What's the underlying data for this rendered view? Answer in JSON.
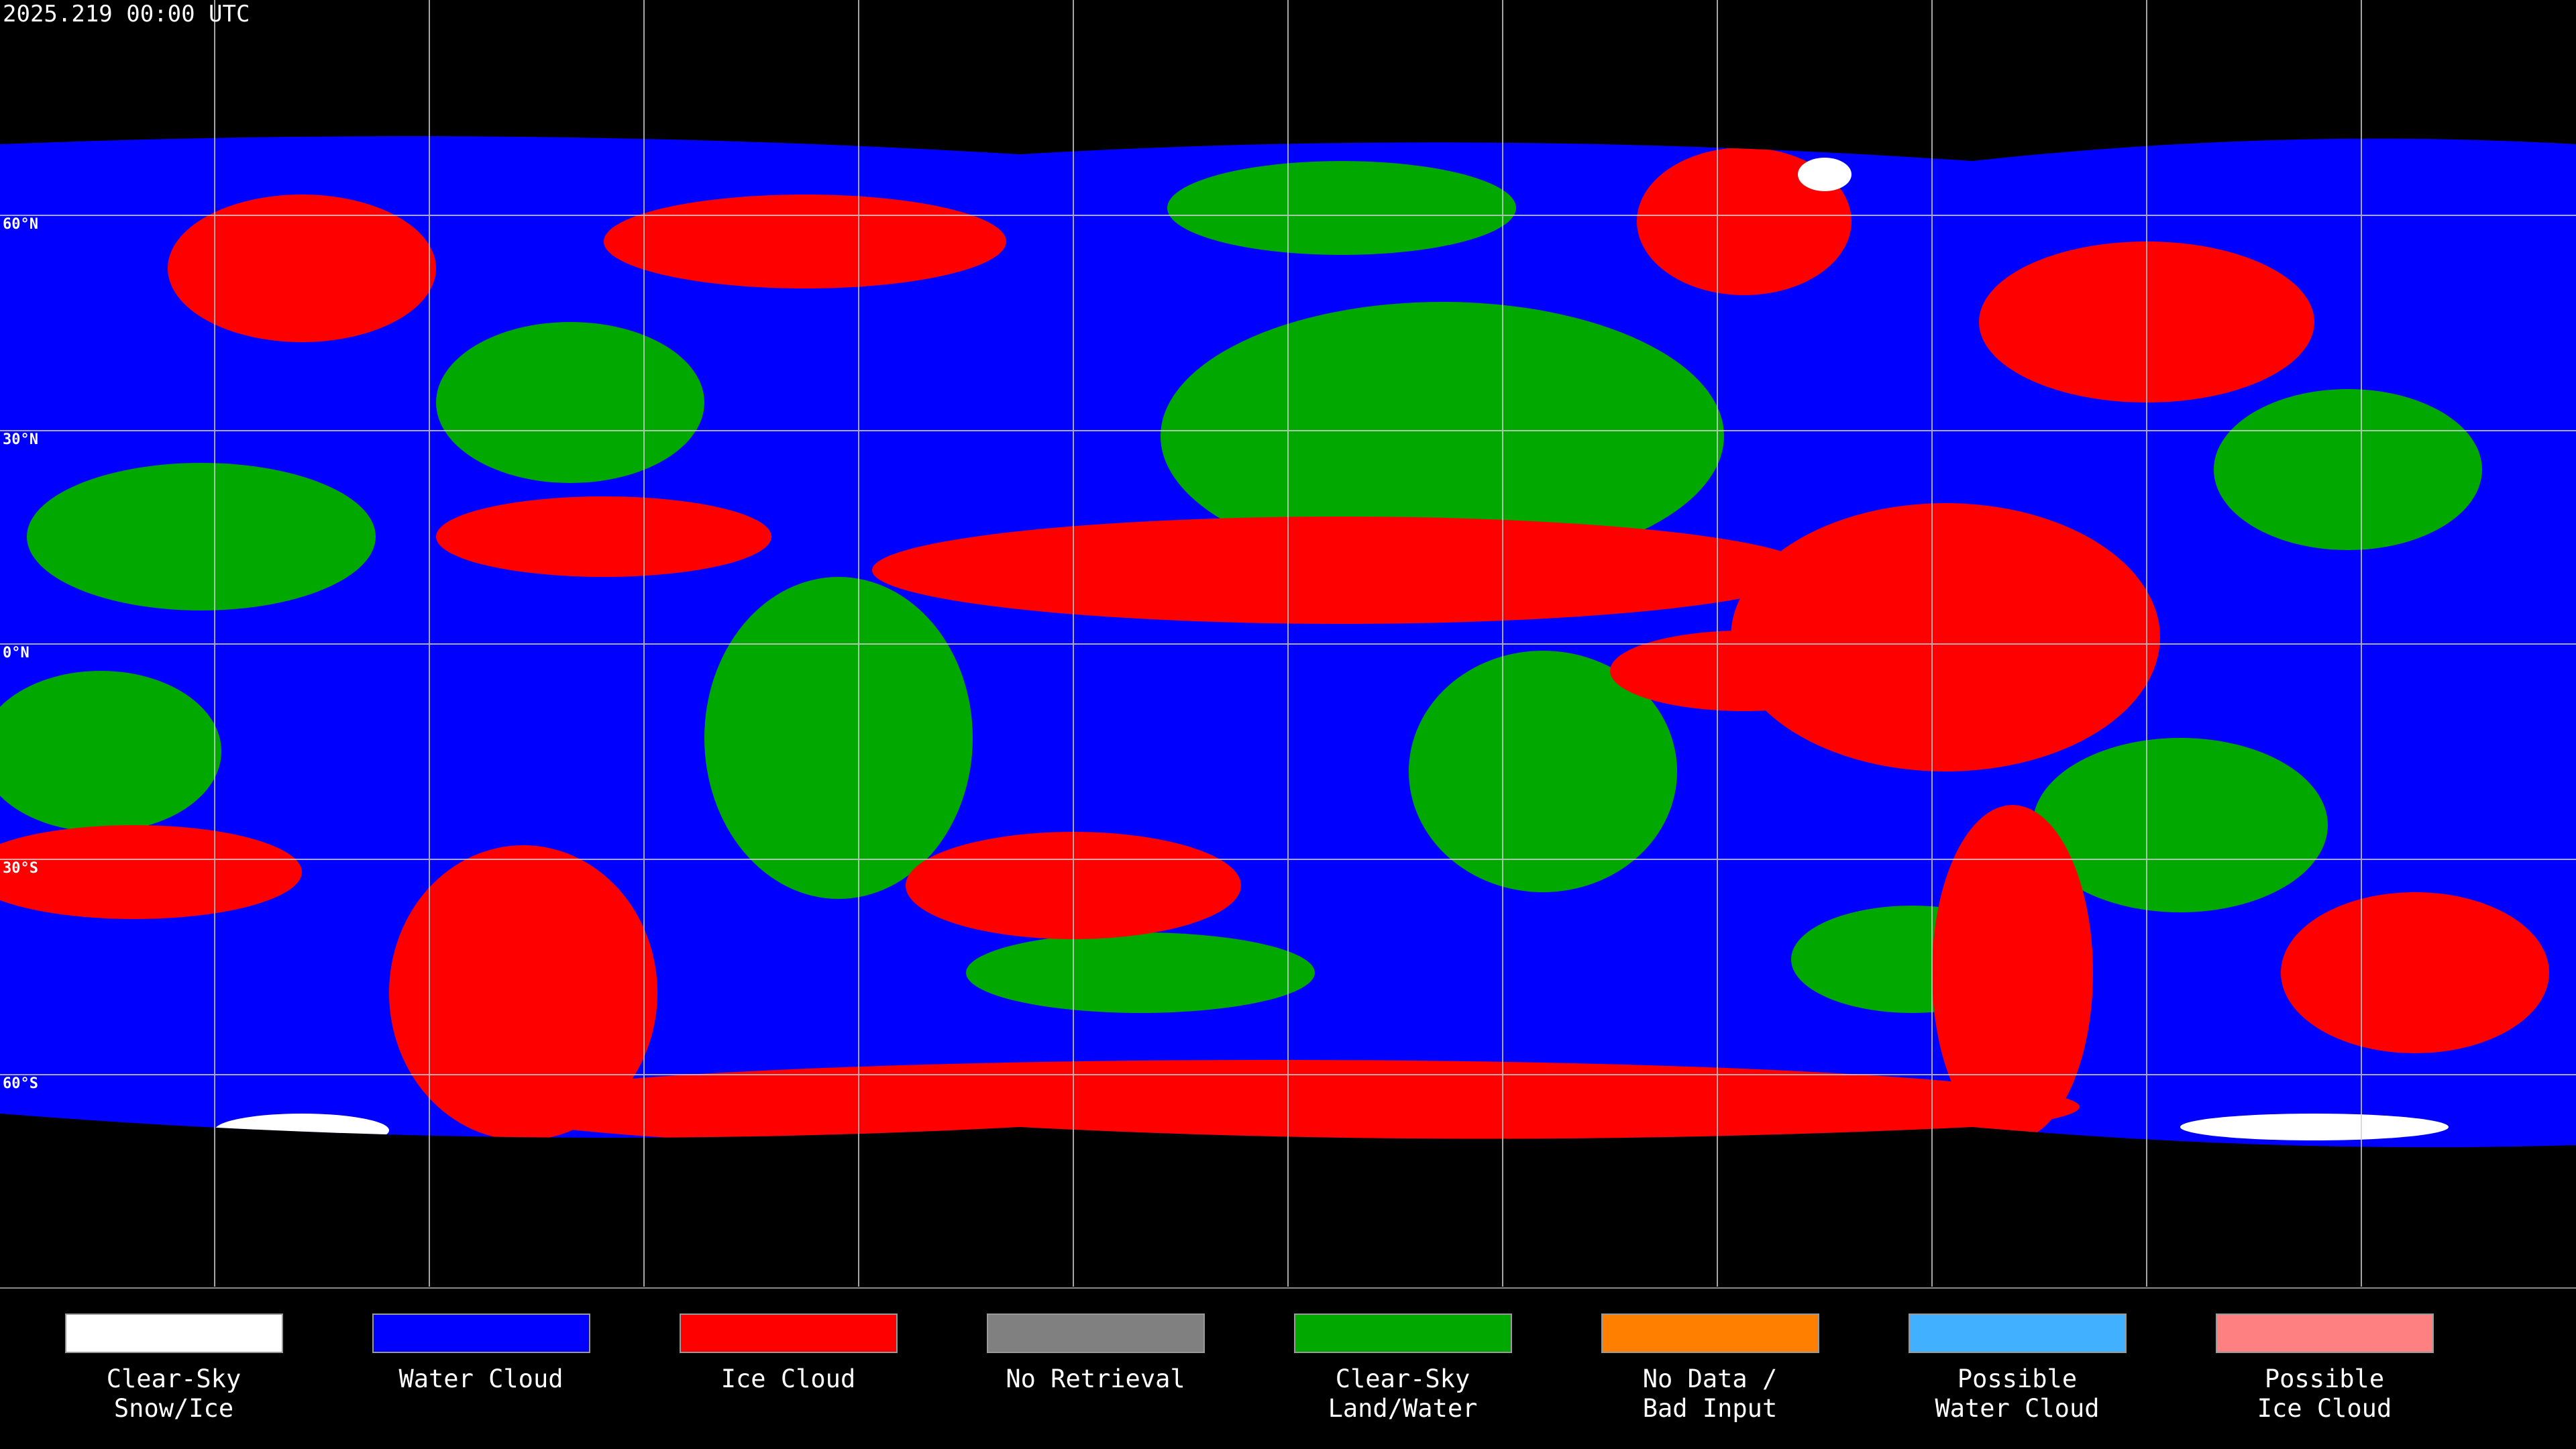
{
  "header": {
    "title": "2025.219 00:00 UTC"
  },
  "grid_labels": [
    "60°N",
    "30°N",
    "0°N",
    "30°S",
    "60°S"
  ],
  "legend": [
    {
      "color": "#ffffff",
      "label_lines": [
        "Clear-Sky",
        "Snow/Ice"
      ]
    },
    {
      "color": "#0000ff",
      "label_lines": [
        "Water Cloud"
      ]
    },
    {
      "color": "#ff0000",
      "label_lines": [
        "Ice Cloud"
      ]
    },
    {
      "color": "#808080",
      "label_lines": [
        "No Retrieval"
      ]
    },
    {
      "color": "#00a800",
      "label_lines": [
        "Clear-Sky",
        "Land/Water"
      ]
    },
    {
      "color": "#ff8000",
      "label_lines": [
        "No Data /",
        "Bad Input"
      ]
    },
    {
      "color": "#40b0ff",
      "label_lines": [
        "Possible",
        "Water Cloud"
      ]
    },
    {
      "color": "#ff8080",
      "label_lines": [
        "Possible",
        "Ice Cloud"
      ]
    }
  ]
}
